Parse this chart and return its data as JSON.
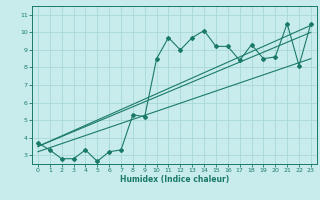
{
  "title": "",
  "xlabel": "Humidex (Indice chaleur)",
  "ylabel": "",
  "background_color": "#c8ecec",
  "grid_color": "#a8d8d8",
  "line_color": "#1a7a6a",
  "xlim": [
    -0.5,
    23.5
  ],
  "ylim": [
    2.5,
    11.5
  ],
  "xticks": [
    0,
    1,
    2,
    3,
    4,
    5,
    6,
    7,
    8,
    9,
    10,
    11,
    12,
    13,
    14,
    15,
    16,
    17,
    18,
    19,
    20,
    21,
    22,
    23
  ],
  "yticks": [
    3,
    4,
    5,
    6,
    7,
    8,
    9,
    10,
    11
  ],
  "scatter_x": [
    0,
    1,
    2,
    3,
    4,
    5,
    6,
    7,
    8,
    9,
    10,
    11,
    12,
    13,
    14,
    15,
    16,
    17,
    18,
    19,
    20,
    21,
    22,
    23
  ],
  "scatter_y": [
    3.7,
    3.3,
    2.8,
    2.8,
    3.3,
    2.65,
    3.2,
    3.3,
    5.3,
    5.2,
    8.5,
    9.7,
    9.0,
    9.7,
    10.1,
    9.2,
    9.2,
    8.4,
    9.3,
    8.5,
    8.6,
    10.5,
    8.1,
    10.5
  ],
  "line1_x": [
    0,
    23
  ],
  "line1_y": [
    3.5,
    10.4
  ],
  "line2_x": [
    0,
    23
  ],
  "line2_y": [
    3.5,
    10.0
  ],
  "line3_x": [
    0,
    23
  ],
  "line3_y": [
    3.2,
    8.5
  ]
}
